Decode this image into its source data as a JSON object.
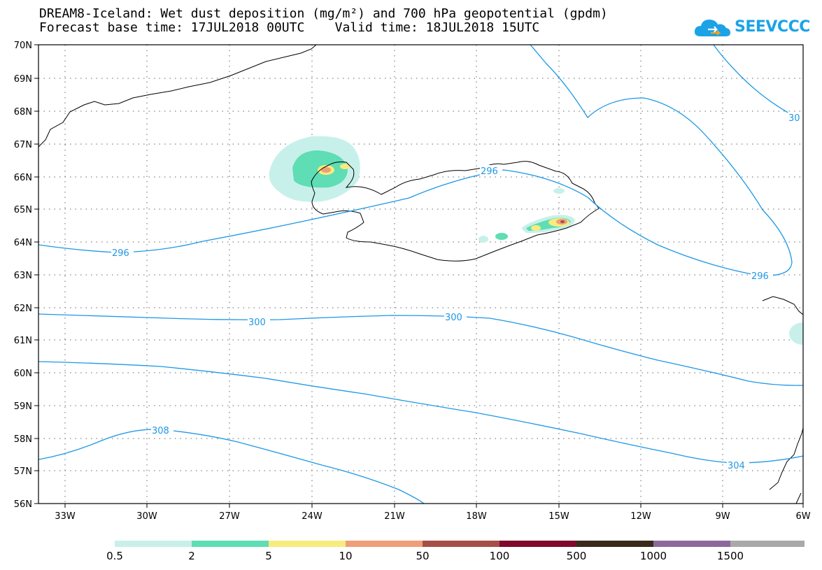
{
  "title_line1": "DREAM8-Iceland: Wet dust deposition (mg/m²) and 700 hPa geopotential (gpdm)",
  "title_line2": "Forecast base time: 17JUL2018 00UTC    Valid time: 18JUL2018 15UTC",
  "logo_text": "SEEVCCC",
  "map": {
    "lon_range": [
      "33W",
      "6W"
    ],
    "lat_range": [
      "56N",
      "70N"
    ],
    "lon_labels": [
      "33W",
      "30W",
      "27W",
      "24W",
      "21W",
      "18W",
      "15W",
      "12W",
      "9W",
      "6W"
    ],
    "lat_labels": [
      "70N",
      "69N",
      "68N",
      "67N",
      "66N",
      "65N",
      "64N",
      "63N",
      "62N",
      "61N",
      "60N",
      "59N",
      "58N",
      "57N",
      "56N"
    ],
    "grid": "dotted",
    "contour_labels": [
      "296",
      "296",
      "296",
      "300",
      "300",
      "304",
      "308",
      "30"
    ]
  },
  "legend": {
    "labels": [
      "0.5",
      "2",
      "5",
      "10",
      "50",
      "100",
      "500",
      "1000",
      "1500"
    ],
    "colors": [
      "#c8f0ea",
      "#5fddb4",
      "#f7ec7d",
      "#ee9f78",
      "#a74f46",
      "#7f0a2b",
      "#3a2a1c",
      "#8c699c",
      "#a9a9a9"
    ]
  }
}
